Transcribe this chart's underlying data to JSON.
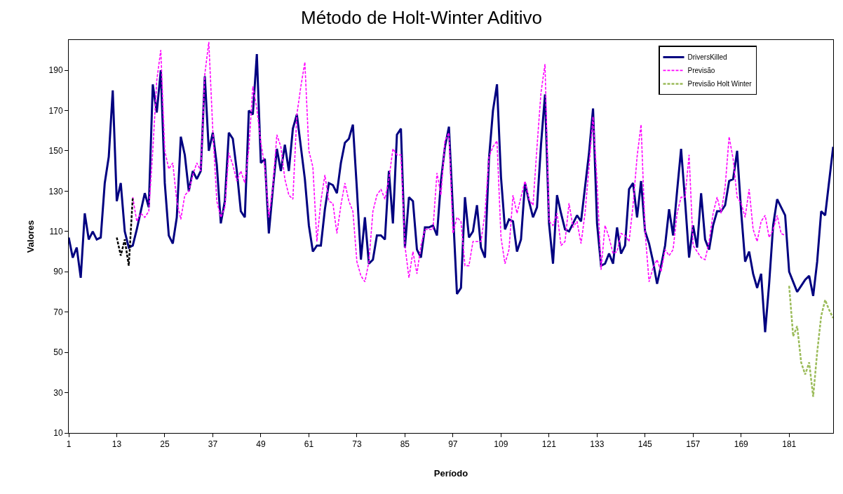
{
  "chart_data": {
    "type": "line",
    "title": "Método de Holt-Winter Aditivo",
    "xlabel": "Período",
    "ylabel": "Valores",
    "x": [
      1,
      2,
      3,
      4,
      5,
      6,
      7,
      8,
      9,
      10,
      11,
      12,
      13,
      14,
      15,
      16,
      17,
      18,
      19,
      20,
      21,
      22,
      23,
      24,
      25,
      26,
      27,
      28,
      29,
      30,
      31,
      32,
      33,
      34,
      35,
      36,
      37,
      38,
      39,
      40,
      41,
      42,
      43,
      44,
      45,
      46,
      47,
      48,
      49,
      50,
      51,
      52,
      53,
      54,
      55,
      56,
      57,
      58,
      59,
      60,
      61,
      62,
      63,
      64,
      65,
      66,
      67,
      68,
      69,
      70,
      71,
      72,
      73,
      74,
      75,
      76,
      77,
      78,
      79,
      80,
      81,
      82,
      83,
      84,
      85,
      86,
      87,
      88,
      89,
      90,
      91,
      92,
      93,
      94,
      95,
      96,
      97,
      98,
      99,
      100,
      101,
      102,
      103,
      104,
      105,
      106,
      107,
      108,
      109,
      110,
      111,
      112,
      113,
      114,
      115,
      116,
      117,
      118,
      119,
      120,
      121,
      122,
      123,
      124,
      125,
      126,
      127,
      128,
      129,
      130,
      131,
      132,
      133,
      134,
      135,
      136,
      137,
      138,
      139,
      140,
      141,
      142,
      143,
      144,
      145,
      146,
      147,
      148,
      149,
      150,
      151,
      152,
      153,
      154,
      155,
      156,
      157,
      158,
      159,
      160,
      161,
      162,
      163,
      164,
      165,
      166,
      167,
      168,
      169,
      170,
      171,
      172,
      173,
      174,
      175,
      176,
      177,
      178,
      179,
      180,
      181,
      182,
      183,
      184,
      185,
      186,
      187,
      188,
      189,
      190,
      191,
      192
    ],
    "series": [
      {
        "name": "DriversKilled",
        "color": "#000080",
        "line_style": "solid",
        "values": [
          107,
          97,
          102,
          87,
          119,
          106,
          110,
          106,
          107,
          134,
          147,
          180,
          125,
          134,
          110,
          102,
          103,
          111,
          120,
          129,
          122,
          183,
          169,
          190,
          134,
          108,
          104,
          117,
          157,
          148,
          130,
          140,
          136,
          140,
          187,
          150,
          159,
          143,
          114,
          125,
          159,
          156,
          140,
          120,
          117,
          170,
          168,
          198,
          144,
          146,
          109,
          131,
          151,
          140,
          153,
          140,
          161,
          168,
          152,
          136,
          113,
          100,
          103,
          103,
          121,
          134,
          133,
          129,
          144,
          154,
          156,
          163,
          131,
          96,
          117,
          94,
          96,
          108,
          108,
          106,
          140,
          114,
          158,
          161,
          102,
          127,
          125,
          101,
          97,
          112,
          112,
          113,
          108,
          135,
          152,
          162,
          120,
          79,
          82,
          127,
          107,
          110,
          123,
          102,
          97,
          146,
          170,
          183,
          137,
          111,
          116,
          115,
          100,
          106,
          134,
          125,
          117,
          122,
          153,
          178,
          114,
          94,
          128,
          119,
          111,
          110,
          114,
          118,
          115,
          132,
          149,
          171,
          114,
          93,
          94,
          99,
          94,
          112,
          99,
          103,
          131,
          134,
          117,
          135,
          110,
          104,
          95,
          84,
          93,
          103,
          121,
          108,
          130,
          151,
          125,
          97,
          113,
          102,
          129,
          106,
          101,
          113,
          120,
          120,
          123,
          135,
          136,
          150,
          120,
          95,
          100,
          89,
          82,
          89,
          60,
          84,
          113,
          126,
          122,
          118,
          90,
          85,
          80,
          83,
          86,
          88,
          78,
          95,
          120,
          118,
          135,
          152
        ]
      },
      {
        "name": "Previsão",
        "color": "#ff00ff",
        "line_style": "dashed",
        "x": [
          17,
          18,
          19,
          20,
          21,
          22,
          23,
          24,
          25,
          26,
          27,
          28,
          29,
          30,
          31,
          32,
          33,
          34,
          35,
          36,
          37,
          38,
          39,
          40,
          41,
          42,
          43,
          44,
          45,
          46,
          47,
          48,
          49,
          50,
          51,
          52,
          53,
          54,
          55,
          56,
          57,
          58,
          59,
          60,
          61,
          62,
          63,
          64,
          65,
          66,
          67,
          68,
          69,
          70,
          71,
          72,
          73,
          74,
          75,
          76,
          77,
          78,
          79,
          80,
          81,
          82,
          83,
          84,
          85,
          86,
          87,
          88,
          89,
          90,
          91,
          92,
          93,
          94,
          95,
          96,
          97,
          98,
          99,
          100,
          101,
          102,
          103,
          104,
          105,
          106,
          107,
          108,
          109,
          110,
          111,
          112,
          113,
          114,
          115,
          116,
          117,
          118,
          119,
          120,
          121,
          122,
          123,
          124,
          125,
          126,
          127,
          128,
          129,
          130,
          131,
          132,
          133,
          134,
          135,
          136,
          137,
          138,
          139,
          140,
          141,
          142,
          143,
          144,
          145,
          146,
          147,
          148,
          149,
          150,
          151,
          152,
          153,
          154,
          155,
          156,
          157,
          158,
          159,
          160,
          161,
          162,
          163,
          164,
          165,
          166,
          167,
          168,
          169,
          170,
          171,
          172,
          173,
          174,
          175,
          176,
          177,
          178,
          179,
          180
        ],
        "values": [
          127,
          115,
          119,
          117,
          120,
          150,
          185,
          200,
          150,
          141,
          144,
          125,
          116,
          128,
          130,
          138,
          144,
          140,
          188,
          204,
          160,
          125,
          117,
          122,
          149,
          143,
          135,
          140,
          134,
          151,
          182,
          171,
          154,
          142,
          117,
          132,
          158,
          152,
          136,
          128,
          126,
          168,
          182,
          194,
          150,
          142,
          105,
          125,
          138,
          125,
          124,
          109,
          123,
          134,
          125,
          120,
          95,
          88,
          85,
          95,
          120,
          128,
          131,
          126,
          136,
          151,
          148,
          148,
          103,
          87,
          100,
          89,
          103,
          111,
          111,
          111,
          139,
          128,
          155,
          159,
          109,
          117,
          115,
          93,
          93,
          105,
          105,
          105,
          119,
          147,
          152,
          155,
          107,
          94,
          101,
          128,
          119,
          127,
          135,
          126,
          123,
          152,
          179,
          193,
          115,
          113,
          119,
          103,
          105,
          124,
          112,
          115,
          104,
          119,
          142,
          167,
          135,
          91,
          113,
          107,
          99,
          100,
          109,
          108,
          105,
          123,
          147,
          163,
          110,
          85,
          92,
          96,
          90,
          101,
          98,
          101,
          119,
          127,
          127,
          148,
          103,
          100,
          97,
          96,
          105,
          119,
          127,
          119,
          132,
          157,
          146,
          127,
          124,
          117,
          131,
          111,
          105,
          115,
          118,
          107,
          111,
          118,
          109,
          108
        ]
      },
      {
        "name": "Previsão Holt Winter",
        "color": "#9bbb59",
        "line_style": "dashed",
        "x": [
          181,
          182,
          183,
          184,
          185,
          186,
          187,
          188,
          189,
          190,
          191,
          192
        ],
        "values": [
          83,
          58,
          63,
          45,
          39,
          45,
          28,
          50,
          68,
          76,
          71,
          67
        ]
      },
      {
        "color": "#000000",
        "line_style": "dashed",
        "x": [
          13,
          14,
          15,
          16,
          17
        ],
        "values": [
          107,
          98,
          106,
          93,
          127
        ]
      }
    ],
    "xlim": [
      1,
      192
    ],
    "xticks": [
      1,
      13,
      25,
      37,
      49,
      61,
      73,
      85,
      97,
      109,
      121,
      133,
      145,
      157,
      169,
      181
    ],
    "ylim": [
      10,
      205
    ],
    "yticks": [
      10,
      30,
      50,
      70,
      90,
      110,
      130,
      150,
      170,
      190
    ],
    "grid": false,
    "legend": "top right",
    "marker": "none"
  }
}
